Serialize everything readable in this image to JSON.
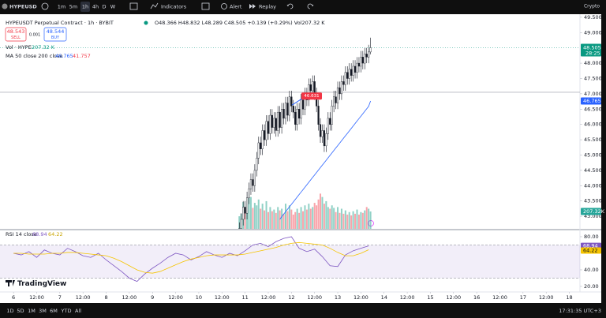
{
  "toolbar": {
    "symbol": "HYPEUSD",
    "intervals": [
      "1m",
      "5m",
      "1h",
      "4h",
      "D",
      "W"
    ],
    "indicators": "Indicators",
    "alert": "Alert",
    "replay": "Replay",
    "market": "Crypto"
  },
  "bottom_bar": {
    "ranges": [
      "1D",
      "5D",
      "1M",
      "3M",
      "6M",
      "YTD",
      "All"
    ],
    "clock": "17:31:35 UTC+3"
  },
  "logo": "TradingView",
  "chart_data": {
    "type": "candlestick",
    "title": "HYPEUSDT Perpetual Contract · 1h · BYBIT",
    "ohlc_legend": "O48.366 H48.832 L48.289 C48.505 +0.139 (+0.29%) Vol207.32 K",
    "sell": {
      "price": 48.543,
      "label": "SELL"
    },
    "spread": 0.001,
    "buy": {
      "price": 48.544,
      "label": "BUY"
    },
    "up_color": "#089981",
    "down_color": "#f23645",
    "x": [
      117,
      118,
      119,
      120,
      121,
      122,
      123,
      124,
      125,
      126,
      127,
      128,
      129,
      130,
      131,
      132,
      133,
      134,
      135,
      136,
      137,
      138,
      139,
      140,
      141,
      142,
      143,
      144,
      145,
      146,
      147,
      148,
      149,
      150,
      151,
      152,
      153,
      154,
      155,
      156,
      157,
      158,
      159,
      160,
      161,
      162,
      163,
      164,
      165,
      166,
      167,
      168,
      169,
      170,
      171,
      172,
      173,
      174,
      175,
      176,
      177,
      178,
      179,
      180,
      181,
      182,
      183,
      184,
      185
    ],
    "open": [
      42.4,
      42.6,
      42.9,
      43.3,
      43.1,
      43.6,
      43.9,
      44.2,
      44.0,
      44.5,
      44.9,
      45.4,
      45.2,
      45.8,
      45.5,
      46.1,
      45.7,
      46.3,
      45.9,
      46.2,
      45.8,
      46.4,
      45.9,
      46.5,
      46.2,
      46.7,
      46.3,
      46.9,
      46.6,
      46.4,
      46.0,
      46.5,
      46.2,
      46.8,
      46.5,
      47.0,
      46.8,
      47.3,
      47.1,
      47.4,
      47.0,
      46.6,
      46.0,
      45.6,
      45.8,
      45.3,
      45.7,
      46.2,
      46.0,
      46.6,
      46.9,
      46.7,
      47.2,
      47.0,
      47.4,
      47.3,
      47.7,
      47.5,
      47.8,
      47.6,
      47.9,
      47.7,
      48.0,
      47.9,
      48.2,
      48.0,
      48.3,
      48.2,
      48.366
    ],
    "high": [
      42.8,
      43.1,
      43.5,
      43.5,
      43.8,
      44.1,
      44.4,
      44.4,
      44.7,
      45.1,
      45.6,
      45.6,
      46.0,
      46.0,
      46.3,
      46.3,
      46.5,
      46.5,
      46.4,
      46.4,
      46.6,
      46.6,
      46.7,
      46.7,
      46.9,
      46.9,
      47.1,
      47.1,
      46.8,
      46.6,
      46.7,
      46.7,
      47.0,
      47.0,
      47.2,
      47.2,
      47.5,
      47.5,
      47.6,
      47.6,
      47.2,
      46.8,
      46.2,
      46.0,
      46.0,
      45.9,
      46.4,
      46.4,
      46.8,
      47.1,
      47.1,
      47.4,
      47.4,
      47.6,
      47.6,
      47.9,
      47.9,
      48.0,
      48.0,
      48.1,
      48.1,
      48.2,
      48.2,
      48.4,
      48.4,
      48.5,
      48.5,
      48.6,
      48.832
    ],
    "low": [
      42.2,
      42.4,
      42.7,
      42.9,
      42.9,
      43.4,
      43.7,
      43.8,
      43.8,
      44.3,
      44.7,
      45.0,
      45.0,
      45.3,
      45.3,
      45.5,
      45.5,
      45.7,
      45.7,
      45.6,
      45.6,
      45.7,
      45.7,
      46.0,
      46.0,
      46.1,
      46.1,
      46.4,
      46.2,
      45.8,
      45.8,
      46.0,
      46.0,
      46.3,
      46.3,
      46.6,
      46.6,
      46.9,
      46.9,
      46.8,
      46.4,
      45.8,
      45.4,
      45.4,
      45.1,
      45.1,
      45.5,
      45.8,
      45.8,
      46.4,
      46.5,
      46.5,
      46.8,
      46.8,
      47.1,
      47.1,
      47.3,
      47.3,
      47.4,
      47.4,
      47.5,
      47.5,
      47.7,
      47.7,
      47.8,
      47.8,
      48.0,
      48.0,
      48.289
    ],
    "close": [
      42.6,
      42.9,
      43.3,
      43.1,
      43.6,
      43.9,
      44.2,
      44.0,
      44.5,
      44.9,
      45.4,
      45.2,
      45.8,
      45.5,
      46.1,
      45.7,
      46.3,
      45.9,
      46.2,
      45.8,
      46.4,
      45.9,
      46.5,
      46.2,
      46.7,
      46.3,
      46.9,
      46.6,
      46.4,
      46.0,
      46.5,
      46.2,
      46.8,
      46.5,
      47.0,
      46.8,
      47.3,
      47.1,
      47.4,
      47.0,
      46.6,
      46.0,
      45.6,
      45.8,
      45.3,
      45.7,
      46.2,
      46.0,
      46.6,
      46.9,
      46.7,
      47.2,
      47.0,
      47.4,
      47.3,
      47.7,
      47.5,
      47.8,
      47.6,
      47.9,
      47.7,
      48.0,
      47.9,
      48.2,
      48.0,
      48.3,
      48.2,
      48.366,
      48.505
    ],
    "countdown": "28:25",
    "xlim": [
      -7,
      293.5
    ],
    "xticks": [
      {
        "value": 0,
        "label": "6"
      },
      {
        "value": 12,
        "label": "12:00"
      },
      {
        "value": 24,
        "label": "7"
      },
      {
        "value": 36,
        "label": "12:00"
      },
      {
        "value": 48,
        "label": "8"
      },
      {
        "value": 60,
        "label": "12:00"
      },
      {
        "value": 72,
        "label": "9"
      },
      {
        "value": 84,
        "label": "12:00"
      },
      {
        "value": 96,
        "label": "10"
      },
      {
        "value": 108,
        "label": "12:00"
      },
      {
        "value": 120,
        "label": "11"
      },
      {
        "value": 132,
        "label": "12:00"
      },
      {
        "value": 144,
        "label": "12"
      },
      {
        "value": 156,
        "label": "12:00"
      },
      {
        "value": 168,
        "label": "13"
      },
      {
        "value": 180,
        "label": "12:00"
      },
      {
        "value": 192,
        "label": "14"
      },
      {
        "value": 204,
        "label": "12:00"
      },
      {
        "value": 216,
        "label": "15"
      },
      {
        "value": 228,
        "label": "12:00"
      },
      {
        "value": 240,
        "label": "16"
      },
      {
        "value": 252,
        "label": "12:00"
      },
      {
        "value": 264,
        "label": "17"
      },
      {
        "value": 276,
        "label": "12:00"
      },
      {
        "value": 288,
        "label": "18"
      }
    ],
    "ylim": [
      42.59,
      49.6
    ],
    "yticks": [
      {
        "value": 49.5,
        "label": "49.500"
      },
      {
        "value": 49,
        "label": "49.000"
      },
      {
        "value": 48,
        "label": "48.000"
      },
      {
        "value": 47.5,
        "label": "47.500"
      },
      {
        "value": 47,
        "label": "47.000"
      },
      {
        "value": 46.5,
        "label": "46.500"
      },
      {
        "value": 46,
        "label": "46.000"
      },
      {
        "value": 45.5,
        "label": "45.500"
      },
      {
        "value": 45,
        "label": "45.000"
      },
      {
        "value": 44.5,
        "label": "44.500"
      },
      {
        "value": 44,
        "label": "44.000"
      },
      {
        "value": 43.5,
        "label": "43.500"
      },
      {
        "value": 43,
        "label": "43.000"
      }
    ],
    "horizontal_line": 47.05,
    "annotation": {
      "value": 46.631,
      "x": 150
    },
    "volume": {
      "label": "Vol · HYPE",
      "legend_label": "207.32 K",
      "axis_label": "207.32K",
      "ylim": [
        0,
        2560
      ],
      "values": [
        150,
        180,
        320,
        260,
        300,
        420,
        380,
        250,
        310,
        280,
        350,
        240,
        300,
        220,
        330,
        200,
        260,
        210,
        230,
        190,
        260,
        220,
        240,
        180,
        300,
        210,
        280,
        230,
        170,
        200,
        240,
        190,
        260,
        210,
        280,
        230,
        300,
        240,
        260,
        310,
        280,
        350,
        420,
        380,
        300,
        330,
        260,
        240,
        280,
        250,
        200,
        260,
        190,
        240,
        180,
        220,
        170,
        200,
        160,
        210,
        180,
        230,
        170,
        200,
        190,
        220,
        260,
        240,
        207.32
      ]
    },
    "ma": {
      "label": "MA 50 close 200 close",
      "ma200": 41.757,
      "color": "#2962ff",
      "values": [
        null,
        null,
        null,
        null,
        null,
        null,
        null,
        null,
        null,
        null,
        null,
        null,
        null,
        null,
        null,
        null,
        null,
        null,
        null,
        null,
        null,
        42.9,
        42.99,
        43.07,
        43.15,
        43.23,
        43.31,
        43.39,
        43.47,
        43.55,
        43.63,
        43.71,
        43.79,
        43.87,
        43.95,
        44.03,
        44.11,
        44.19,
        44.27,
        44.35,
        44.43,
        44.51,
        44.59,
        44.67,
        44.75,
        44.83,
        44.91,
        44.99,
        45.07,
        45.15,
        45.23,
        45.31,
        45.39,
        45.47,
        45.55,
        45.63,
        45.71,
        45.79,
        45.87,
        45.95,
        46.03,
        46.11,
        46.19,
        46.27,
        46.35,
        46.43,
        46.51,
        46.59,
        46.765
      ]
    },
    "rsi": {
      "label": "RSI 14 close",
      "color": "#7e57c2",
      "ma_color": "#f5c400",
      "ylim": [
        13.3,
        87.6
      ],
      "yticks": [
        {
          "value": 80,
          "label": "80.00"
        },
        {
          "value": 40,
          "label": "40.00"
        },
        {
          "value": 20,
          "label": "20.00"
        }
      ],
      "band": [
        30,
        70
      ],
      "x": [
        0,
        4,
        8,
        12,
        16,
        20,
        24,
        28,
        32,
        36,
        40,
        44,
        48,
        52,
        56,
        60,
        64,
        68,
        72,
        76,
        80,
        84,
        88,
        92,
        96,
        100,
        104,
        108,
        112,
        116,
        120,
        124,
        128,
        132,
        136,
        140,
        144,
        148,
        152,
        156,
        160,
        164,
        168,
        172,
        176,
        180,
        184
      ],
      "values": [
        60,
        58,
        62,
        55,
        64,
        60,
        58,
        66,
        62,
        57,
        55,
        60,
        52,
        45,
        38,
        30,
        26,
        35,
        42,
        48,
        55,
        60,
        58,
        52,
        56,
        62,
        58,
        55,
        60,
        57,
        63,
        70,
        72,
        68,
        74,
        78,
        80,
        66,
        62,
        65,
        56,
        45,
        44,
        58,
        63,
        66,
        68.94
      ],
      "ma_values": [
        60,
        60,
        59,
        59,
        59,
        60,
        60,
        61,
        61,
        60,
        59,
        58,
        57,
        54,
        50,
        45,
        40,
        37,
        36,
        38,
        42,
        46,
        50,
        53,
        55,
        57,
        58,
        58,
        58,
        58,
        59,
        61,
        63,
        65,
        67,
        70,
        72,
        73,
        72,
        71,
        70,
        66,
        61,
        57,
        57,
        60,
        64.22
      ]
    }
  }
}
